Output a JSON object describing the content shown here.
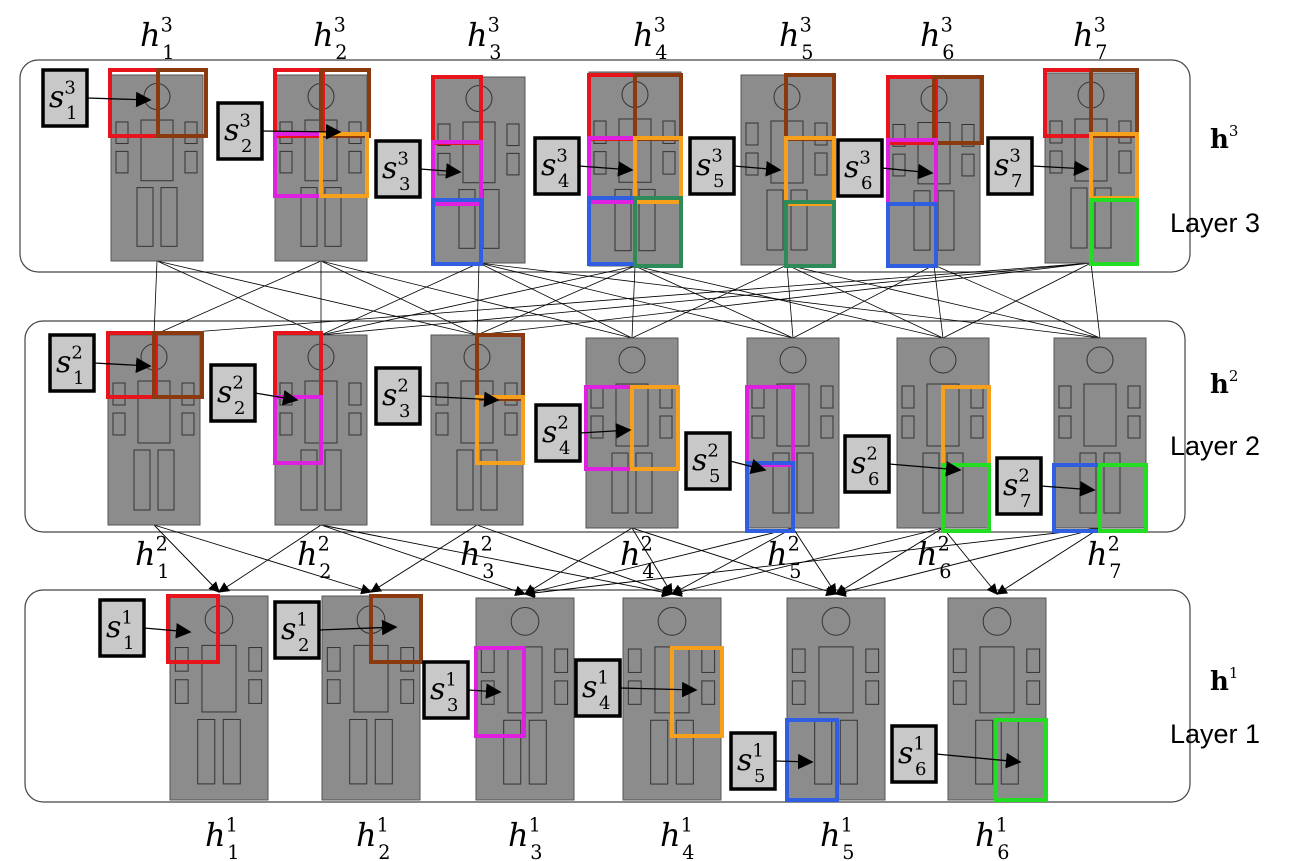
{
  "colors": {
    "red": "#e8141c",
    "brown": "#8b3a0f",
    "magenta": "#e020e0",
    "orange": "#f7a01c",
    "blue": "#2f5fe0",
    "teal": "#2e8b57",
    "green": "#22dd22",
    "body": "#8c8c8c",
    "stateBox": "#c8c8c8"
  },
  "layers": [
    {
      "id": "layer3",
      "name": "Layer 3",
      "vector": "h",
      "vector_sup": "3",
      "hidden_labels": [
        {
          "base": "h",
          "sub": "1",
          "sup": "3"
        },
        {
          "base": "h",
          "sub": "2",
          "sup": "3"
        },
        {
          "base": "h",
          "sub": "3",
          "sup": "3"
        },
        {
          "base": "h",
          "sub": "4",
          "sup": "3"
        },
        {
          "base": "h",
          "sub": "5",
          "sup": "3"
        },
        {
          "base": "h",
          "sub": "6",
          "sup": "3"
        },
        {
          "base": "h",
          "sub": "7",
          "sup": "3"
        }
      ],
      "states": [
        {
          "base": "s",
          "sub": "1",
          "sup": "3"
        },
        {
          "base": "s",
          "sub": "2",
          "sup": "3"
        },
        {
          "base": "s",
          "sub": "3",
          "sup": "3"
        },
        {
          "base": "s",
          "sub": "4",
          "sup": "3"
        },
        {
          "base": "s",
          "sub": "5",
          "sup": "3"
        },
        {
          "base": "s",
          "sub": "6",
          "sup": "3"
        },
        {
          "base": "s",
          "sub": "7",
          "sup": "3"
        }
      ]
    },
    {
      "id": "layer2",
      "name": "Layer 2",
      "vector": "h",
      "vector_sup": "2",
      "hidden_labels": [
        {
          "base": "h",
          "sub": "1",
          "sup": "2"
        },
        {
          "base": "h",
          "sub": "2",
          "sup": "2"
        },
        {
          "base": "h",
          "sub": "3",
          "sup": "2"
        },
        {
          "base": "h",
          "sub": "4",
          "sup": "2"
        },
        {
          "base": "h",
          "sub": "5",
          "sup": "2"
        },
        {
          "base": "h",
          "sub": "6",
          "sup": "2"
        },
        {
          "base": "h",
          "sub": "7",
          "sup": "2"
        }
      ],
      "states": [
        {
          "base": "s",
          "sub": "1",
          "sup": "2"
        },
        {
          "base": "s",
          "sub": "2",
          "sup": "2"
        },
        {
          "base": "s",
          "sub": "3",
          "sup": "2"
        },
        {
          "base": "s",
          "sub": "4",
          "sup": "2"
        },
        {
          "base": "s",
          "sub": "5",
          "sup": "2"
        },
        {
          "base": "s",
          "sub": "6",
          "sup": "2"
        },
        {
          "base": "s",
          "sub": "7",
          "sup": "2"
        }
      ]
    },
    {
      "id": "layer1",
      "name": "Layer 1",
      "vector": "h",
      "vector_sup": "1",
      "hidden_labels": [
        {
          "base": "h",
          "sub": "1",
          "sup": "1"
        },
        {
          "base": "h",
          "sub": "2",
          "sup": "1"
        },
        {
          "base": "h",
          "sub": "3",
          "sup": "1"
        },
        {
          "base": "h",
          "sub": "4",
          "sup": "1"
        },
        {
          "base": "h",
          "sub": "5",
          "sup": "1"
        },
        {
          "base": "h",
          "sub": "6",
          "sup": "1"
        }
      ],
      "states": [
        {
          "base": "s",
          "sub": "1",
          "sup": "1"
        },
        {
          "base": "s",
          "sub": "2",
          "sup": "1"
        },
        {
          "base": "s",
          "sub": "3",
          "sup": "1"
        },
        {
          "base": "s",
          "sub": "4",
          "sup": "1"
        },
        {
          "base": "s",
          "sub": "5",
          "sup": "1"
        },
        {
          "base": "s",
          "sub": "6",
          "sup": "1"
        }
      ]
    }
  ]
}
